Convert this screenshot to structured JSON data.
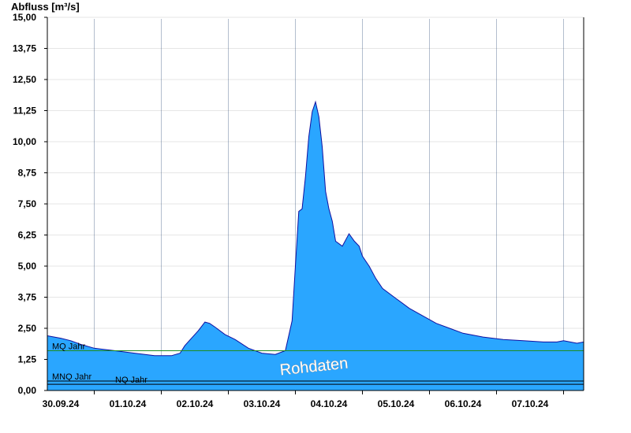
{
  "chart_data": {
    "type": "area",
    "ylabel": "Abfluss [m³/s]",
    "ylim": [
      0,
      15
    ],
    "yticks": [
      "0,00",
      "1,25",
      "2,50",
      "3,75",
      "5,00",
      "6,25",
      "7,50",
      "8,75",
      "10,00",
      "11,25",
      "12,50",
      "13,75",
      "15,00"
    ],
    "yticks_values": [
      0,
      1.25,
      2.5,
      3.75,
      5.0,
      6.25,
      7.5,
      8.75,
      10.0,
      11.25,
      12.5,
      13.75,
      15.0
    ],
    "xlim": [
      -0.2,
      7.8
    ],
    "xticks": [
      "30.09.24",
      "01.10.24",
      "02.10.24",
      "03.10.24",
      "04.10.24",
      "05.10.24",
      "06.10.24",
      "07.10.24"
    ],
    "grid": "horizontal",
    "watermark": "Rohdaten",
    "colors": {
      "fill": "#2aa6ff",
      "outline": "#1010a0",
      "mq_line": "#1e8c1e",
      "nq_line": "#000000"
    },
    "reference_lines": [
      {
        "name": "MQ Jahr",
        "value": 1.6
      },
      {
        "name": "MNQ Jahr",
        "value": 0.38
      },
      {
        "name": "NQ Jahr",
        "value": 0.25
      }
    ],
    "series": [
      {
        "x": [
          -0.2,
          0.0,
          0.15,
          0.3,
          0.5,
          0.8,
          1.1,
          1.4,
          1.65,
          1.78,
          1.85,
          1.95,
          2.05,
          2.15,
          2.22,
          2.3,
          2.45,
          2.6,
          2.8,
          3.0,
          3.2,
          3.35,
          3.45,
          3.5,
          3.55,
          3.6,
          3.65,
          3.7,
          3.75,
          3.8,
          3.85,
          3.9,
          3.95,
          4.0,
          4.05,
          4.1,
          4.2,
          4.3,
          4.38,
          4.45,
          4.5,
          4.6,
          4.7,
          4.8,
          5.0,
          5.2,
          5.4,
          5.6,
          5.8,
          6.0,
          6.3,
          6.6,
          6.9,
          7.2,
          7.4,
          7.5,
          7.6,
          7.7,
          7.8
        ],
        "y": [
          2.2,
          2.1,
          2.0,
          1.85,
          1.7,
          1.6,
          1.5,
          1.4,
          1.4,
          1.5,
          1.8,
          2.1,
          2.4,
          2.75,
          2.7,
          2.55,
          2.25,
          2.05,
          1.7,
          1.5,
          1.45,
          1.6,
          2.8,
          5.0,
          7.2,
          7.3,
          8.6,
          10.2,
          11.2,
          11.6,
          11.0,
          9.8,
          8.0,
          7.3,
          6.8,
          6.0,
          5.8,
          6.3,
          6.0,
          5.8,
          5.4,
          5.0,
          4.5,
          4.1,
          3.7,
          3.3,
          3.0,
          2.7,
          2.5,
          2.3,
          2.15,
          2.05,
          2.0,
          1.95,
          1.95,
          2.0,
          1.95,
          1.9,
          1.95
        ]
      }
    ]
  }
}
